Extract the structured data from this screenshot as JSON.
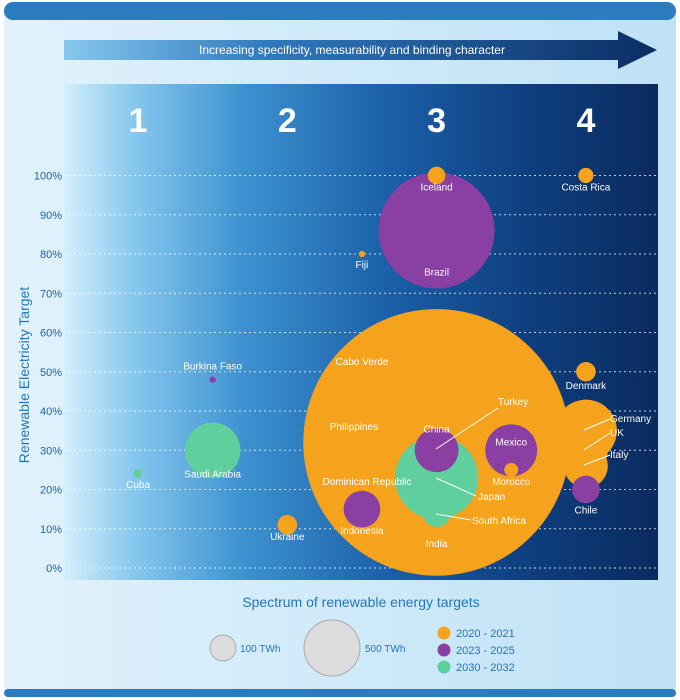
{
  "chart_data": {
    "type": "bubble",
    "banner": "Increasing specificity, measurability and binding character",
    "xlabel": "Spectrum of renewable energy targets",
    "ylabel": "Renewable Electricity Target",
    "categories": [
      "1",
      "2",
      "3",
      "4"
    ],
    "y_ticks": [
      "0%",
      "10%",
      "20%",
      "30%",
      "40%",
      "50%",
      "60%",
      "70%",
      "80%",
      "90%",
      "100%"
    ],
    "ylim": [
      0,
      100
    ],
    "grid": true,
    "size_legend": [
      {
        "label": "100 TWh",
        "twh": 100
      },
      {
        "label": "500 TWh",
        "twh": 500
      }
    ],
    "legend": [
      {
        "label": "2020 - 2021",
        "color": "#f5a21d"
      },
      {
        "label": "2023 - 2025",
        "color": "#8a3fa2"
      },
      {
        "label": "2030 - 2032",
        "color": "#5fcf9e"
      }
    ],
    "points": [
      {
        "name": "Cuba",
        "category": 1,
        "y": 24,
        "twh": 2,
        "period": 2
      },
      {
        "name": "Burkina Faso",
        "category": 1.5,
        "y": 48,
        "twh": 1,
        "period": 1
      },
      {
        "name": "Saudi Arabia",
        "category": 1.5,
        "y": 30,
        "twh": 80,
        "period": 2
      },
      {
        "name": "Ukraine",
        "category": 2,
        "y": 11,
        "twh": 10,
        "period": 0
      },
      {
        "name": "Fiji",
        "category": 2.5,
        "y": 80,
        "twh": 1,
        "period": 0
      },
      {
        "name": "Cabo Verde",
        "category": 2.5,
        "y": 50,
        "twh": 0.5,
        "period": 0
      },
      {
        "name": "Philippines",
        "category": 2.5,
        "y": 40,
        "twh": 20,
        "period": 0
      },
      {
        "name": "Dominican Republic",
        "category": 2.5,
        "y": 25,
        "twh": 2,
        "period": 0
      },
      {
        "name": "Indonesia",
        "category": 2.5,
        "y": 15,
        "twh": 35,
        "period": 1
      },
      {
        "name": "Iceland",
        "category": 3,
        "y": 100,
        "twh": 8,
        "period": 0
      },
      {
        "name": "Brazil",
        "category": 3,
        "y": 86,
        "twh": 350,
        "period": 1
      },
      {
        "name": "China",
        "category": 3,
        "y": 32,
        "twh": 1850,
        "period": 0
      },
      {
        "name": "Turkey",
        "category": 3,
        "y": 30,
        "twh": 50,
        "period": 1
      },
      {
        "name": "Japan",
        "category": 3,
        "y": 23,
        "twh": 180,
        "period": 2
      },
      {
        "name": "India",
        "category": 3,
        "y": 15,
        "twh": 200,
        "period": 0
      },
      {
        "name": "South Africa",
        "category": 3,
        "y": 14,
        "twh": 20,
        "period": 2
      },
      {
        "name": "Mexico",
        "category": 3.5,
        "y": 30,
        "twh": 70,
        "period": 1
      },
      {
        "name": "Morocco",
        "category": 3.5,
        "y": 25,
        "twh": 5,
        "period": 0
      },
      {
        "name": "Costa Rica",
        "category": 4,
        "y": 100,
        "twh": 6,
        "period": 0
      },
      {
        "name": "Denmark",
        "category": 4,
        "y": 50,
        "twh": 10,
        "period": 0
      },
      {
        "name": "Germany",
        "category": 4,
        "y": 35,
        "twh": 100,
        "period": 0
      },
      {
        "name": "UK",
        "category": 4,
        "y": 30,
        "twh": 50,
        "period": 0
      },
      {
        "name": "Italy",
        "category": 4,
        "y": 26,
        "twh": 50,
        "period": 0
      },
      {
        "name": "Chile",
        "category": 4,
        "y": 20,
        "twh": 20,
        "period": 1
      }
    ]
  }
}
